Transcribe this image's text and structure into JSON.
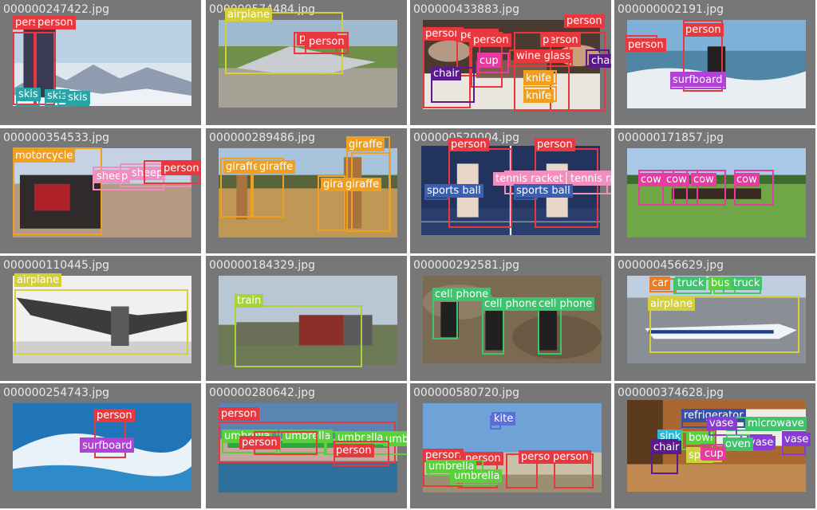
{
  "grid": {
    "cells": [
      {
        "filename": "000000247422.jpg",
        "scene": "mountain",
        "boxes": [
          {
            "label": "person",
            "color": "#e8383d"
          },
          {
            "label": "person",
            "color": "#e8383d"
          },
          {
            "label": "skis",
            "color": "#2aa3a7"
          },
          {
            "label": "skis",
            "color": "#2aa3a7"
          },
          {
            "label": "skis",
            "color": "#2aa3a7"
          }
        ]
      },
      {
        "filename": "000000574484.jpg",
        "scene": "runway",
        "boxes": [
          {
            "label": "airplane",
            "color": "#d4cf3b"
          },
          {
            "label": "person",
            "color": "#e8383d"
          },
          {
            "label": "person",
            "color": "#e8383d"
          }
        ]
      },
      {
        "filename": "000000433883.jpg",
        "scene": "restaurant",
        "boxes": [
          {
            "label": "person",
            "color": "#e8383d"
          },
          {
            "label": "person",
            "color": "#e8383d"
          },
          {
            "label": "person",
            "color": "#e8383d"
          },
          {
            "label": "person",
            "color": "#e8383d"
          },
          {
            "label": "person",
            "color": "#e8383d"
          },
          {
            "label": "chair",
            "color": "#5a1a8c"
          },
          {
            "label": "chair",
            "color": "#5a1a8c"
          },
          {
            "label": "cup",
            "color": "#e83aa0"
          },
          {
            "label": "wine glass",
            "color": "#e8383d"
          },
          {
            "label": "knife",
            "color": "#f0a020"
          },
          {
            "label": "knife",
            "color": "#f0a020"
          }
        ]
      },
      {
        "filename": "000000002191.jpg",
        "scene": "surf",
        "boxes": [
          {
            "label": "person",
            "color": "#e8383d"
          },
          {
            "label": "person",
            "color": "#e8383d"
          },
          {
            "label": "surfboard",
            "color": "#b142d6"
          }
        ]
      },
      {
        "filename": "000000354533.jpg",
        "scene": "desert",
        "boxes": [
          {
            "label": "motorcycle",
            "color": "#f0a020"
          },
          {
            "label": "sheep",
            "color": "#f08ec0"
          },
          {
            "label": "sheep",
            "color": "#f08ec0"
          },
          {
            "label": "person",
            "color": "#e8383d"
          }
        ]
      },
      {
        "filename": "000000289486.jpg",
        "scene": "savanna",
        "boxes": [
          {
            "label": "giraffe",
            "color": "#f0a020"
          },
          {
            "label": "giraffe",
            "color": "#f0a020"
          },
          {
            "label": "giraffe",
            "color": "#f0a020"
          },
          {
            "label": "giraffe",
            "color": "#f0a020"
          },
          {
            "label": "giraffe",
            "color": "#f0a020"
          }
        ]
      },
      {
        "filename": "000000520004.jpg",
        "scene": "tennis",
        "boxes": [
          {
            "label": "person",
            "color": "#e8383d"
          },
          {
            "label": "person",
            "color": "#e8383d"
          },
          {
            "label": "tennis racket",
            "color": "#f08ec0"
          },
          {
            "label": "tennis racket",
            "color": "#f08ec0"
          },
          {
            "label": "sports ball",
            "color": "#3a5fb0"
          },
          {
            "label": "sports ball",
            "color": "#3a5fb0"
          }
        ]
      },
      {
        "filename": "000000171857.jpg",
        "scene": "field",
        "boxes": [
          {
            "label": "cow",
            "color": "#e83aa0"
          },
          {
            "label": "cow",
            "color": "#e83aa0"
          },
          {
            "label": "cow",
            "color": "#e83aa0"
          },
          {
            "label": "cow",
            "color": "#e83aa0"
          }
        ]
      },
      {
        "filename": "000000110445.jpg",
        "scene": "bwplane",
        "boxes": [
          {
            "label": "airplane",
            "color": "#d4cf3b"
          }
        ]
      },
      {
        "filename": "000000184329.jpg",
        "scene": "train",
        "boxes": [
          {
            "label": "train",
            "color": "#a8d23a"
          }
        ]
      },
      {
        "filename": "000000292581.jpg",
        "scene": "rocks",
        "boxes": [
          {
            "label": "cell phone",
            "color": "#3fc46e"
          },
          {
            "label": "cell phone",
            "color": "#3fc46e"
          },
          {
            "label": "cell phone",
            "color": "#3fc46e"
          }
        ]
      },
      {
        "filename": "000000456629.jpg",
        "scene": "airport",
        "boxes": [
          {
            "label": "airplane",
            "color": "#d4cf3b"
          },
          {
            "label": "car",
            "color": "#f07a20"
          },
          {
            "label": "truck",
            "color": "#3fc46e"
          },
          {
            "label": "bus",
            "color": "#5ad13a"
          },
          {
            "label": "truck",
            "color": "#3fc46e"
          }
        ]
      },
      {
        "filename": "000000254743.jpg",
        "scene": "wave",
        "boxes": [
          {
            "label": "person",
            "color": "#e8383d"
          },
          {
            "label": "surfboard",
            "color": "#b142d6"
          }
        ]
      },
      {
        "filename": "000000280642.jpg",
        "scene": "beach",
        "boxes": [
          {
            "label": "person",
            "color": "#e8383d"
          },
          {
            "label": "umbrella",
            "color": "#5ad13a"
          },
          {
            "label": "umbrella",
            "color": "#5ad13a"
          },
          {
            "label": "umbrella",
            "color": "#5ad13a"
          },
          {
            "label": "umbrella",
            "color": "#5ad13a"
          },
          {
            "label": "person",
            "color": "#e8383d"
          },
          {
            "label": "person",
            "color": "#e8383d"
          }
        ]
      },
      {
        "filename": "000000580720.jpg",
        "scene": "sky",
        "boxes": [
          {
            "label": "kite",
            "color": "#5a6ee0"
          },
          {
            "label": "person",
            "color": "#e8383d"
          },
          {
            "label": "person",
            "color": "#e8383d"
          },
          {
            "label": "person",
            "color": "#e8383d"
          },
          {
            "label": "person",
            "color": "#e8383d"
          },
          {
            "label": "umbrella",
            "color": "#5ad13a"
          },
          {
            "label": "umbrella",
            "color": "#5ad13a"
          }
        ]
      },
      {
        "filename": "000000374628.jpg",
        "scene": "kitchen",
        "boxes": [
          {
            "label": "refrigerator",
            "color": "#3a4fa8"
          },
          {
            "label": "microwave",
            "color": "#3fc46e"
          },
          {
            "label": "sink",
            "color": "#2ab8d8"
          },
          {
            "label": "bowl",
            "color": "#5ad13a"
          },
          {
            "label": "vase",
            "color": "#8a3ad6"
          },
          {
            "label": "vase",
            "color": "#8a3ad6"
          },
          {
            "label": "vase",
            "color": "#8a3ad6"
          },
          {
            "label": "oven",
            "color": "#3fc46e"
          },
          {
            "label": "chair",
            "color": "#5a1a8c"
          },
          {
            "label": "spoon",
            "color": "#c8d23a"
          },
          {
            "label": "cup",
            "color": "#e83aa0"
          }
        ]
      }
    ]
  }
}
